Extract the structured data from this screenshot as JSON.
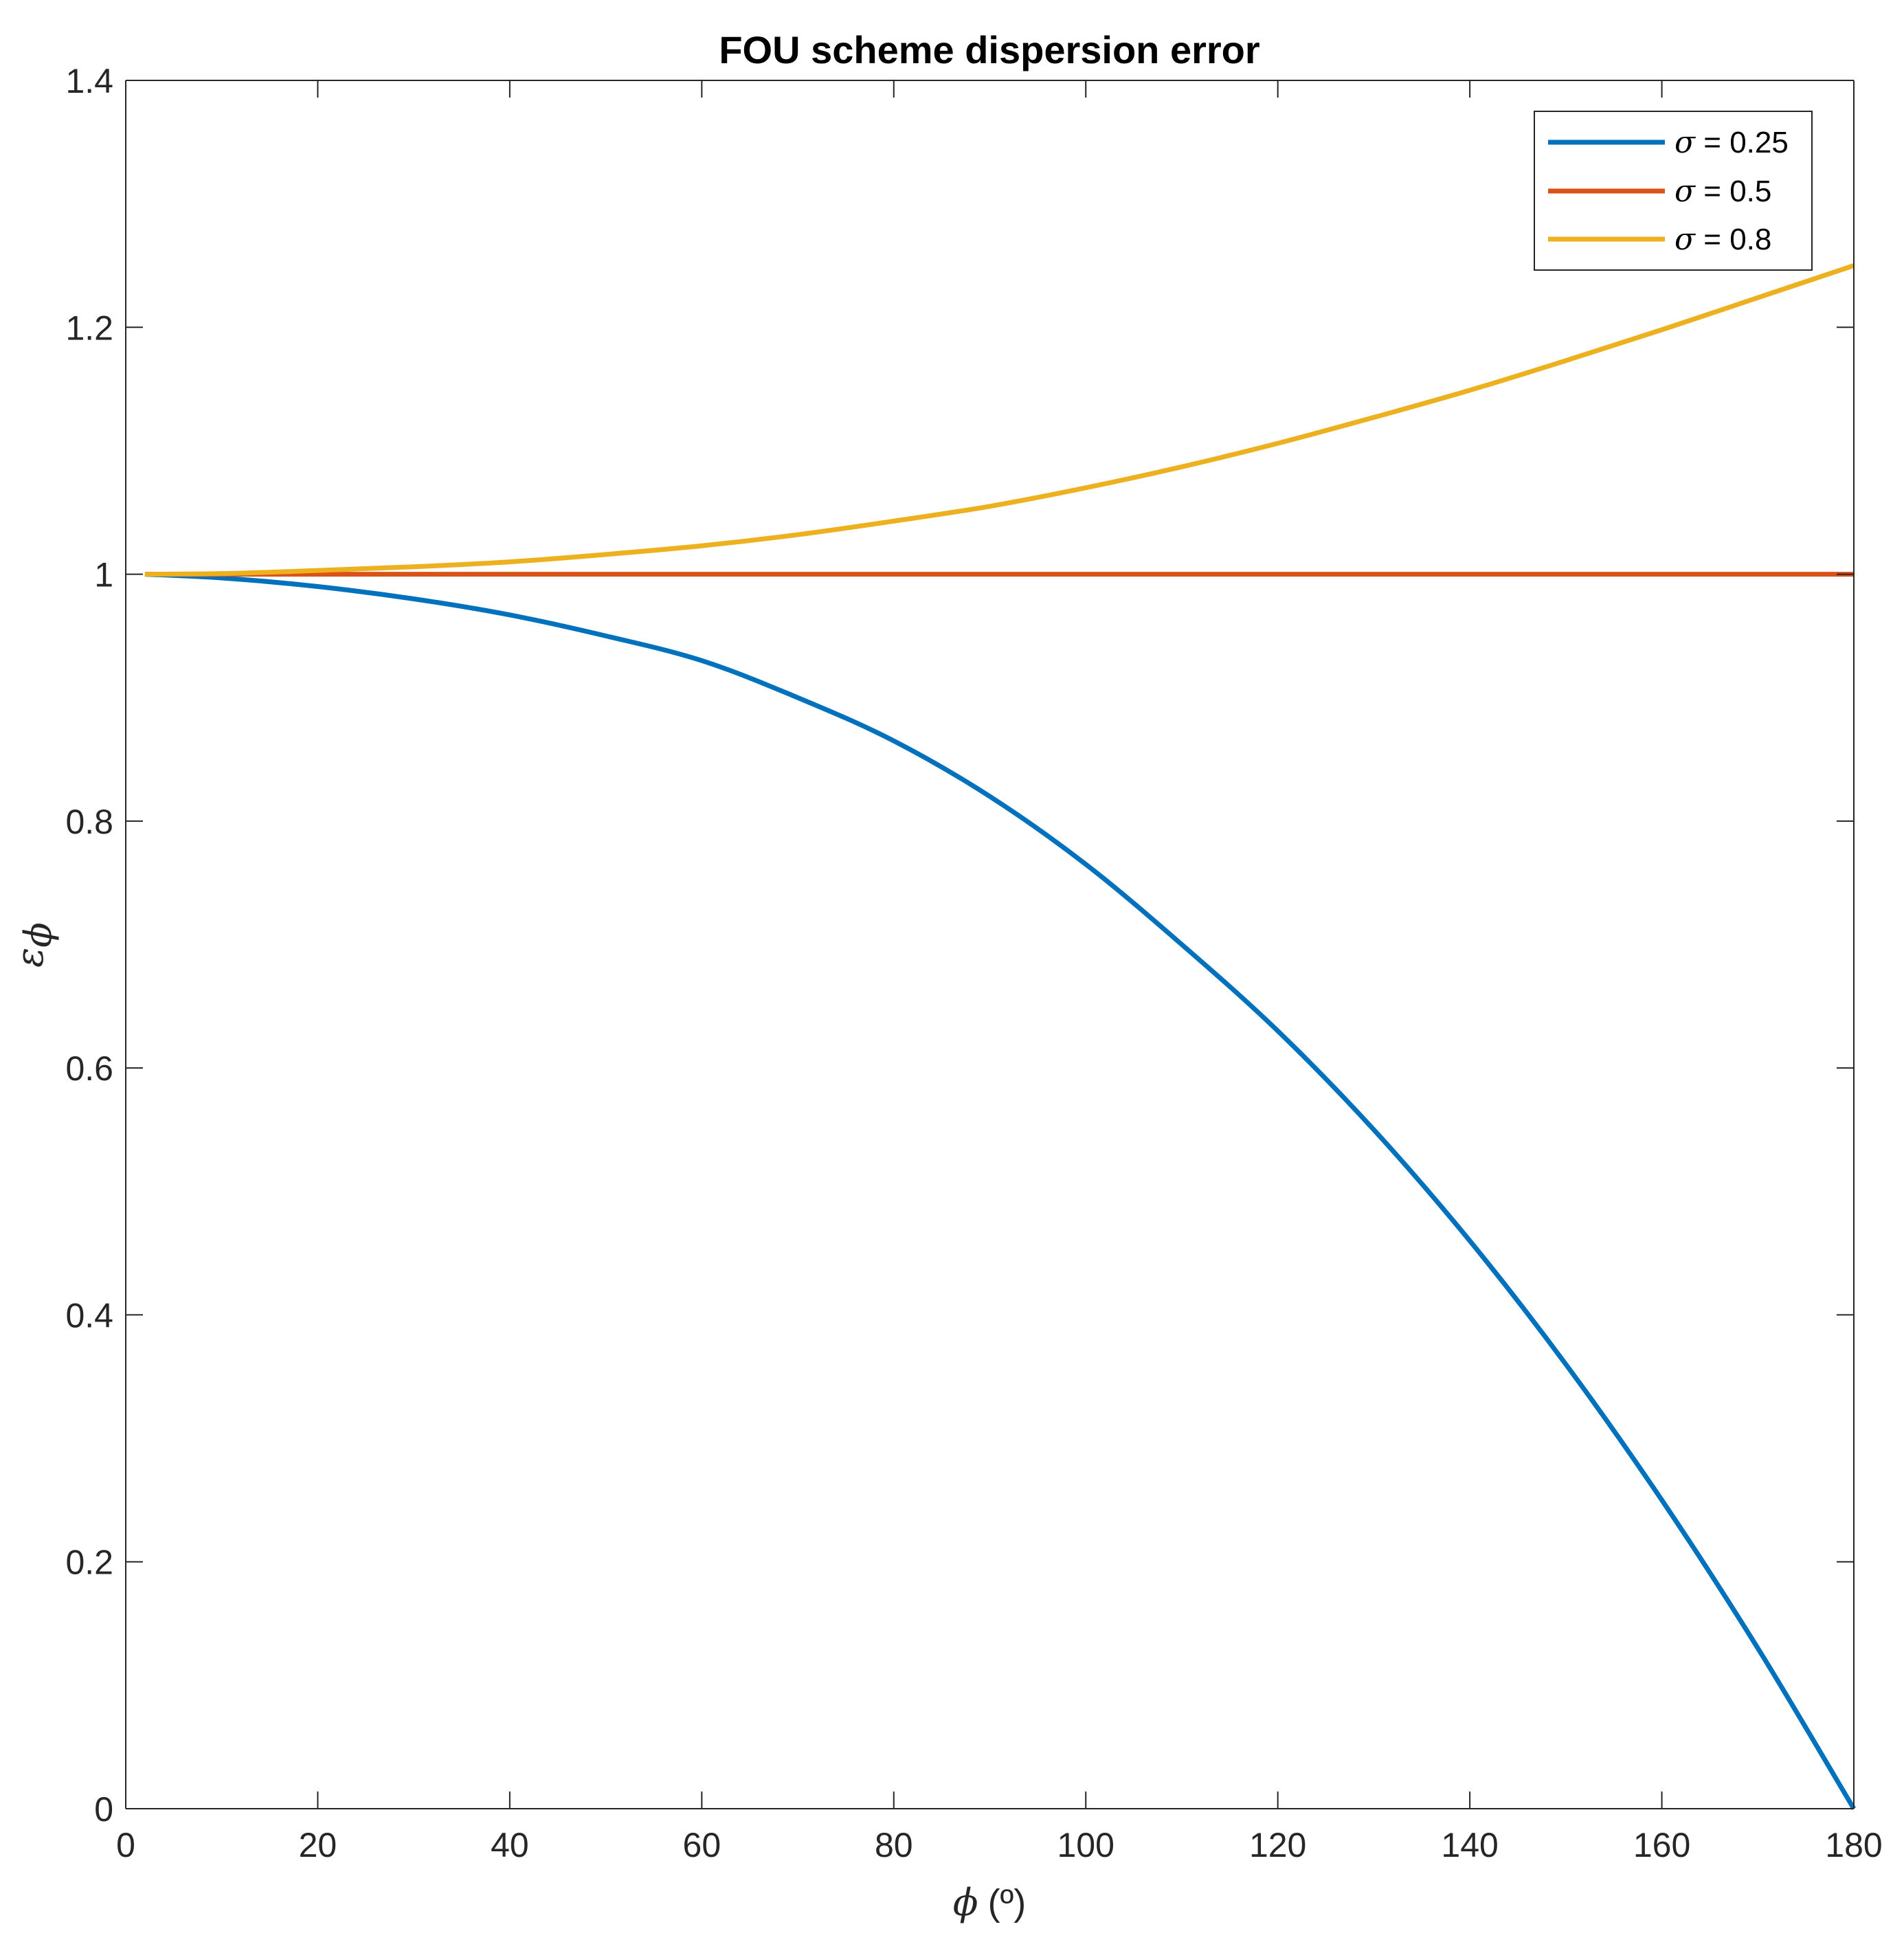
{
  "chart_data": {
    "type": "line",
    "title": "FOU scheme dispersion error",
    "xlabel_symbol": "ϕ",
    "xlabel_unit": "(º)",
    "ylabel_symbol": "ε",
    "ylabel_subscript": "ϕ",
    "xlim": [
      0,
      180
    ],
    "ylim": [
      0,
      1.4
    ],
    "x_ticks": [
      0,
      20,
      40,
      60,
      80,
      100,
      120,
      140,
      160,
      180
    ],
    "y_ticks": [
      0,
      0.2,
      0.4,
      0.6,
      0.8,
      1,
      1.2,
      1.4
    ],
    "x_tick_labels": [
      "0",
      "20",
      "40",
      "60",
      "80",
      "100",
      "120",
      "140",
      "160",
      "180"
    ],
    "y_tick_labels": [
      "0",
      "0.2",
      "0.4",
      "0.6",
      "0.8",
      "1",
      "1.2",
      "1.4"
    ],
    "legend_position": "top-right",
    "grid": false,
    "series": [
      {
        "name": "σ = 0.25",
        "symbol": "σ",
        "label_rest": " = 0.25",
        "color": "#0072BD",
        "x": [
          2,
          10,
          20,
          30,
          40,
          50,
          60,
          70,
          80,
          90,
          100,
          110,
          120,
          130,
          140,
          150,
          160,
          170,
          180
        ],
        "y": [
          1.0,
          0.997,
          0.99,
          0.98,
          0.967,
          0.95,
          0.93,
          0.9,
          0.865,
          0.82,
          0.765,
          0.7,
          0.63,
          0.55,
          0.46,
          0.36,
          0.25,
          0.13,
          0.0
        ]
      },
      {
        "name": "σ = 0.5",
        "symbol": "σ",
        "label_rest": " = 0.5",
        "color": "#D95319",
        "x": [
          2,
          180
        ],
        "y": [
          1.0,
          1.0
        ]
      },
      {
        "name": "σ = 0.8",
        "symbol": "σ",
        "label_rest": " = 0.8",
        "color": "#EDB120",
        "x": [
          2,
          10,
          20,
          30,
          40,
          50,
          60,
          70,
          80,
          90,
          100,
          110,
          120,
          130,
          140,
          150,
          160,
          170,
          180
        ],
        "y": [
          1.0,
          1.0005,
          1.003,
          1.006,
          1.01,
          1.016,
          1.023,
          1.032,
          1.043,
          1.055,
          1.07,
          1.087,
          1.106,
          1.127,
          1.149,
          1.173,
          1.198,
          1.224,
          1.25
        ]
      }
    ]
  }
}
